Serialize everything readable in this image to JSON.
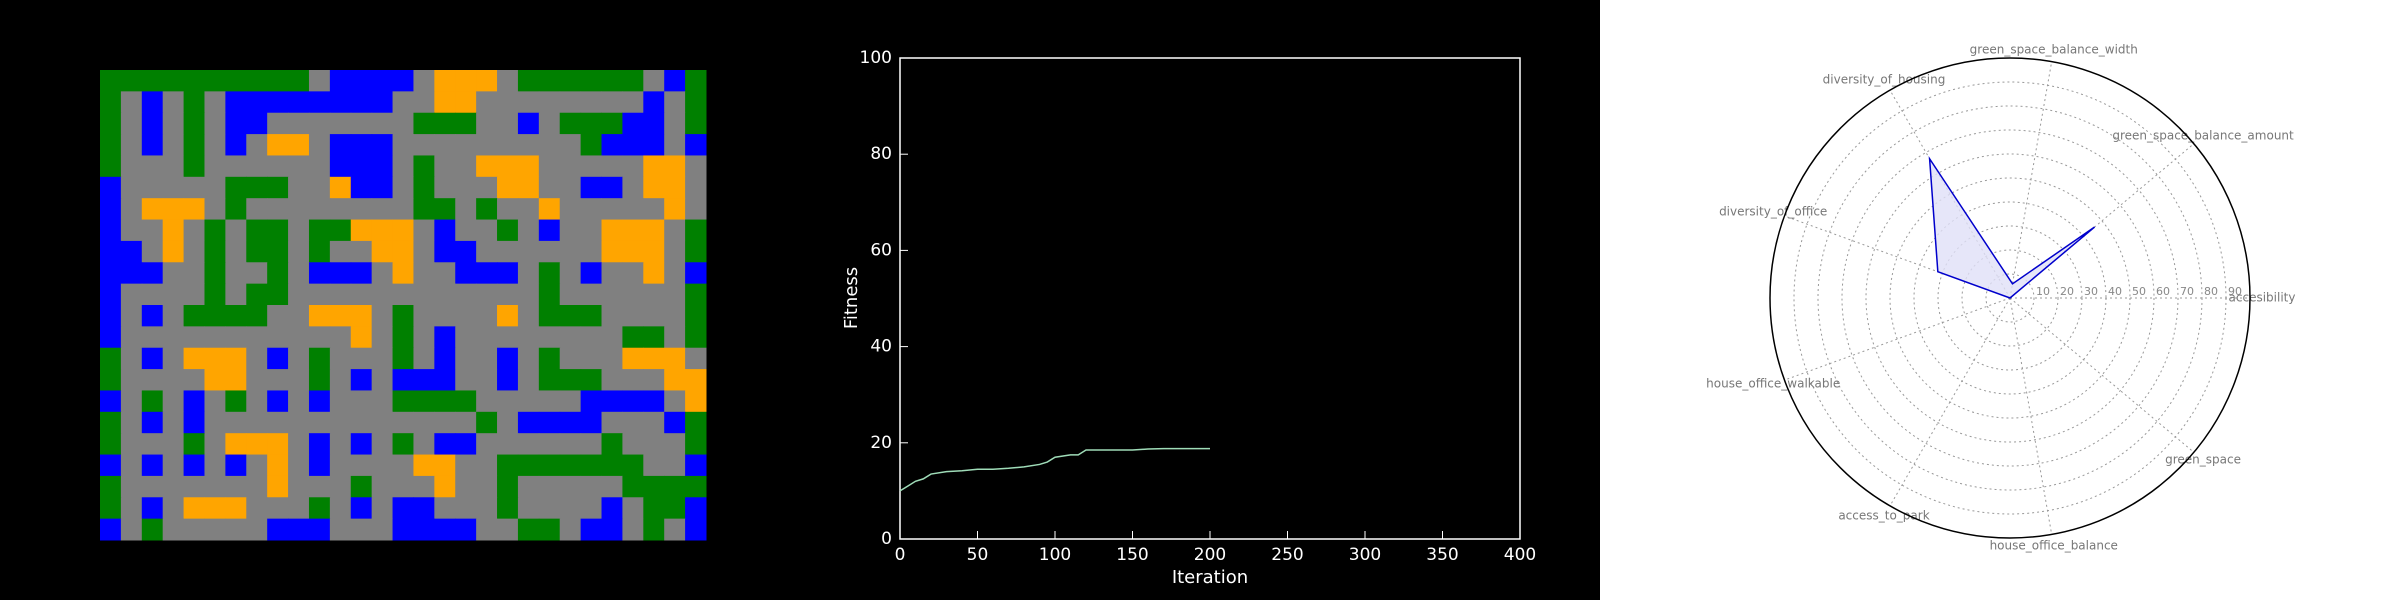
{
  "map": {
    "colors": {
      "G": "#008000",
      "B": "#0000ff",
      "O": "#ffa500",
      "R": "#808080"
    },
    "rows": [
      "GGGGGGGGGGRBBBBROOORGGGGGGRBG",
      "GRBRGRBBBBBBBBRROORRRRRRRRBRG",
      "GRBRGRBBRRRRRRRGGGRRBRGGGBBRG",
      "GRBRGRBROORBBBRRRRRRRRRGBBBRB",
      "GRRRGRRRRRRBBBRGRROOORRRRROOR",
      "BRRRRRGGGRROBBRGRRROORRBBROOR",
      "BROOORGRRRRRRRRGGRGRRORRRRROR",
      "BRRORGRGGRGGOOORBRRGRBRROOORG",
      "BBRORGRGGRGRROORBBRRRRRROOORG",
      "BBBRRGRRGRBBBRORRBBBRGRBRRORB",
      "BRRRRGRGGRRRRRRRRRRRRGRRRRRRG",
      "BRBRGGGGRROOORGRRRRORGGGRRRRG",
      "BRRRRRRRRRRRORGRBRRRRRRRRGGRG",
      "GRBROOORBRGRRRGRBRRBRGRRROOOR",
      "GRRRROORRRGRBRBBBRRBRGGGRRROO",
      "BRGRBRGRBRBRRRGGGGRRRRRBBBBRO",
      "GRBRBRRRRRRRRRRRRRGRBBBBRRRBG",
      "GRRRGROOORBRBRGRBBRRRRRRGRRRG",
      "BRBRBRBRORBRRRROORRGGGGGGGRRB",
      "GRRRRRRRORRRGRRRORRGRRRRRGGGG",
      "GRBROOORRRGRBRBBRRRGRRRRBRGGB",
      "BRGRRRRRBBBRRRBBBBRRGGRBBRGRB"
    ]
  },
  "chart_data": [
    {
      "type": "line",
      "xlabel": "Iteration",
      "ylabel": "Fitness",
      "xlim": [
        0,
        400
      ],
      "ylim": [
        0,
        100
      ],
      "xticks": [
        0,
        50,
        100,
        150,
        200,
        250,
        300,
        350,
        400
      ],
      "yticks": [
        0,
        20,
        40,
        60,
        80,
        100
      ],
      "series": [
        {
          "color": "#9fdcb8",
          "x": [
            0,
            5,
            10,
            15,
            20,
            30,
            40,
            50,
            60,
            70,
            80,
            90,
            95,
            100,
            110,
            115,
            120,
            130,
            140,
            150,
            160,
            170,
            180,
            190,
            200
          ],
          "values": [
            10,
            11,
            12,
            12.5,
            13.5,
            14,
            14.2,
            14.5,
            14.5,
            14.7,
            15,
            15.5,
            16,
            17,
            17.5,
            17.5,
            18.5,
            18.5,
            18.5,
            18.5,
            18.7,
            18.8,
            18.8,
            18.8,
            18.8
          ]
        }
      ]
    },
    {
      "type": "radar",
      "categories": [
        "accesibility",
        "green_space_balance_amount",
        "green_space_balance_width",
        "diversity_of_housing",
        "diversity_of_office",
        "house_office_walkable",
        "access_to_park",
        "house_office_balance",
        "green_space"
      ],
      "values": [
        0,
        46,
        6,
        67,
        32,
        0,
        0,
        0,
        0
      ],
      "rlim": [
        0,
        100
      ],
      "rticks": [
        10,
        20,
        30,
        40,
        50,
        60,
        70,
        80,
        90
      ],
      "color": "#0000cc",
      "fill": "#e0e0f8"
    }
  ]
}
